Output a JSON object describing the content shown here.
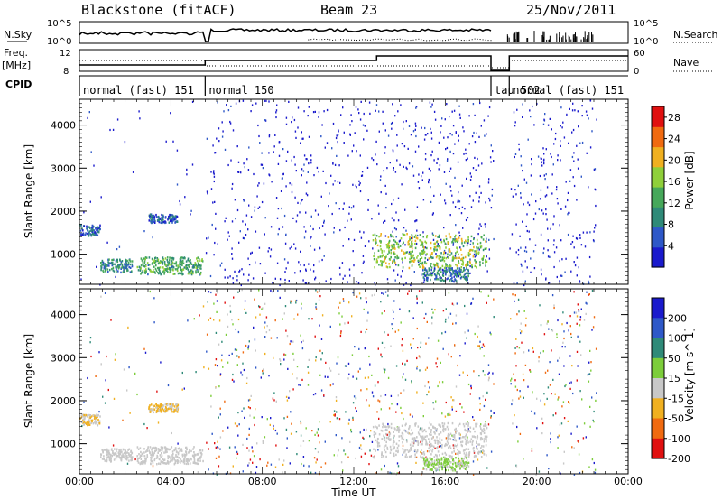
{
  "header": {
    "station": "Blackstone (fitACF)",
    "beam": "Beam 23",
    "date": "25/Nov/2011"
  },
  "strip_panels": {
    "nsky_label": "N.Sky",
    "nsky_ticks": [
      "10^5",
      "10^0"
    ],
    "nsearch_label": "N.Search",
    "nsearch_ticks": [
      "10^5",
      "10^0"
    ],
    "freq_label": "Freq.",
    "freq_unit": "[MHz]",
    "freq_ticks": [
      "12",
      "8"
    ],
    "nave_label": "Nave",
    "nave_ticks": [
      "60",
      "0"
    ],
    "cpid_label": "CPID",
    "cpid_segments": [
      {
        "label": "normal (fast) 151",
        "start_hour": 0.0,
        "end_hour": 5.5
      },
      {
        "label": "normal 150",
        "start_hour": 5.5,
        "end_hour": 18.0
      },
      {
        "label": "tau 502",
        "start_hour": 18.0,
        "end_hour": 18.8
      },
      {
        "label": "normal (fast) 151",
        "start_hour": 18.8,
        "end_hour": 24.0
      }
    ]
  },
  "chart_data": [
    {
      "type": "heatmap",
      "title": "",
      "xlabel": "Time UT",
      "ylabel": "Slant Range [km]",
      "xlim": [
        0,
        24
      ],
      "ylim": [
        300,
        4600
      ],
      "x_ticks": [
        "00:00",
        "04:00",
        "08:00",
        "12:00",
        "16:00",
        "20:00",
        "00:00"
      ],
      "y_ticks": [
        1000,
        2000,
        3000,
        4000
      ],
      "colorbar": {
        "label": "Power [dB]",
        "ticks": [
          4,
          8,
          12,
          16,
          20,
          24,
          28
        ],
        "range": [
          0,
          30
        ],
        "colors": [
          "#1a1acc",
          "#2e58c8",
          "#2f8a78",
          "#46a85a",
          "#8fcf3a",
          "#f0b020",
          "#f06a10",
          "#e01010"
        ]
      },
      "echo_regions": [
        {
          "start_hour": 0.0,
          "end_hour": 0.9,
          "min_km": 1450,
          "max_km": 1700,
          "level_db": 6
        },
        {
          "start_hour": 0.9,
          "end_hour": 2.3,
          "min_km": 600,
          "max_km": 900,
          "level_db": 10
        },
        {
          "start_hour": 2.5,
          "end_hour": 5.4,
          "min_km": 550,
          "max_km": 950,
          "level_db": 12
        },
        {
          "start_hour": 3.0,
          "end_hour": 4.3,
          "min_km": 1750,
          "max_km": 1950,
          "level_db": 6
        },
        {
          "start_hour": 12.8,
          "end_hour": 17.8,
          "min_km": 700,
          "max_km": 1500,
          "level_db": 16
        },
        {
          "start_hour": 15.0,
          "end_hour": 17.0,
          "min_km": 400,
          "max_km": 700,
          "level_db": 8
        }
      ]
    },
    {
      "type": "heatmap",
      "title": "",
      "xlabel": "Time UT",
      "ylabel": "Slant Range [km]",
      "xlim": [
        0,
        24
      ],
      "ylim": [
        300,
        4600
      ],
      "x_ticks": [
        "00:00",
        "04:00",
        "08:00",
        "12:00",
        "16:00",
        "20:00",
        "00:00"
      ],
      "y_ticks": [
        1000,
        2000,
        3000,
        4000
      ],
      "colorbar": {
        "label": "Velocity [m s^-1]",
        "ticks": [
          200,
          100,
          50,
          15,
          -15,
          -50,
          -100,
          -200
        ],
        "colors": [
          "#1a1acc",
          "#2e58c8",
          "#2f8a78",
          "#7ccd3a",
          "#c8c8c8",
          "#f0b020",
          "#f06a10",
          "#e01010"
        ]
      },
      "echo_regions": [
        {
          "start_hour": 0.0,
          "end_hour": 0.9,
          "min_km": 1450,
          "max_km": 1700,
          "velocity": -15
        },
        {
          "start_hour": 0.9,
          "end_hour": 2.3,
          "min_km": 600,
          "max_km": 900,
          "velocity": 0
        },
        {
          "start_hour": 2.5,
          "end_hour": 5.4,
          "min_km": 550,
          "max_km": 950,
          "velocity": 0
        },
        {
          "start_hour": 3.0,
          "end_hour": 4.3,
          "min_km": 1750,
          "max_km": 1950,
          "velocity": -20
        },
        {
          "start_hour": 12.8,
          "end_hour": 17.8,
          "min_km": 700,
          "max_km": 1500,
          "velocity": 0
        },
        {
          "start_hour": 15.0,
          "end_hour": 17.0,
          "min_km": 400,
          "max_km": 700,
          "velocity": 20
        }
      ]
    }
  ]
}
